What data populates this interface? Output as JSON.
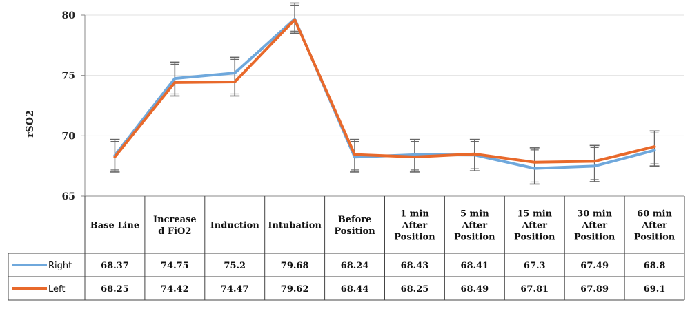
{
  "chart_data": {
    "type": "line",
    "ylabel": "rSO2",
    "ylim": [
      65,
      80
    ],
    "yticks": [
      "65",
      "70",
      "75",
      "80"
    ],
    "grid": true,
    "legend": "table",
    "categories": [
      "Base Line",
      "Increase d FiO2",
      "Induction",
      "Intubation",
      "Before Position",
      "1 min After Position",
      "5 min After Position",
      "15 min After Position",
      "30 min After Position",
      "60 min After Position"
    ],
    "series": [
      {
        "name": "Right",
        "color": "#6fa8dc",
        "values": [
          68.37,
          74.75,
          75.2,
          79.68,
          68.24,
          68.43,
          68.41,
          67.3,
          67.49,
          68.8
        ],
        "labels": [
          "68.37",
          "74.75",
          "75.2",
          "79.68",
          "68.24",
          "68.43",
          "68.41",
          "67.3",
          "67.49",
          "68.8"
        ]
      },
      {
        "name": "Left",
        "color": "#e8692b",
        "values": [
          68.25,
          74.42,
          74.47,
          79.62,
          68.44,
          68.25,
          68.49,
          67.81,
          67.89,
          69.1
        ],
        "labels": [
          "68.25",
          "74.42",
          "74.47",
          "79.62",
          "68.44",
          "68.25",
          "68.49",
          "67.81",
          "67.89",
          "69.1"
        ]
      }
    ],
    "error_bars": {
      "upper": [
        69.7,
        76.1,
        76.5,
        81.0,
        69.7,
        69.7,
        69.7,
        69.0,
        69.2,
        70.4
      ],
      "lower": [
        67.0,
        73.3,
        73.3,
        78.5,
        67.0,
        67.0,
        67.1,
        66.0,
        66.2,
        67.5
      ]
    }
  }
}
